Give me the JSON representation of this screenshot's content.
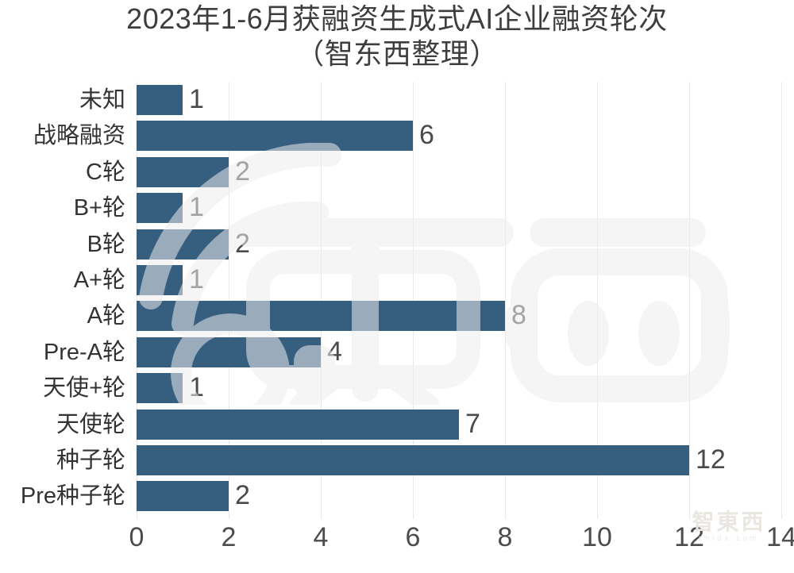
{
  "title": {
    "line1": "2023年1-6月获融资生成式AI企业融资轮次",
    "line2": "（智东西整理）"
  },
  "watermarks": {
    "center_logo_name": "zhidongxi-robot-logo",
    "bottom_right_logo": "智東西",
    "bottom_right_domain": "zhidx.com"
  },
  "colors": {
    "bar": "#365E7F",
    "gridline": "#e9e9e9",
    "title_text": "#3e3e3e",
    "category_text": "#333333",
    "value_text": "#4a4a4a",
    "tick_text": "#4c4c4c",
    "watermark": "#ededed",
    "background": "#ffffff"
  },
  "chart_data": {
    "type": "bar",
    "orientation": "horizontal",
    "title": "2023年1-6月获融资生成式AI企业融资轮次（智东西整理）",
    "categories": [
      "未知",
      "战略融资",
      "C轮",
      "B+轮",
      "B轮",
      "A+轮",
      "A轮",
      "Pre-A轮",
      "天使+轮",
      "天使轮",
      "种子轮",
      "Pre种子轮"
    ],
    "values": [
      1,
      6,
      2,
      1,
      2,
      1,
      8,
      4,
      1,
      7,
      12,
      2
    ],
    "xlabel": "",
    "ylabel": "",
    "xlim": [
      0,
      14
    ],
    "xticks": [
      0,
      2,
      4,
      6,
      8,
      10,
      12,
      14
    ],
    "grid": true,
    "value_labels": true,
    "legend": false
  }
}
